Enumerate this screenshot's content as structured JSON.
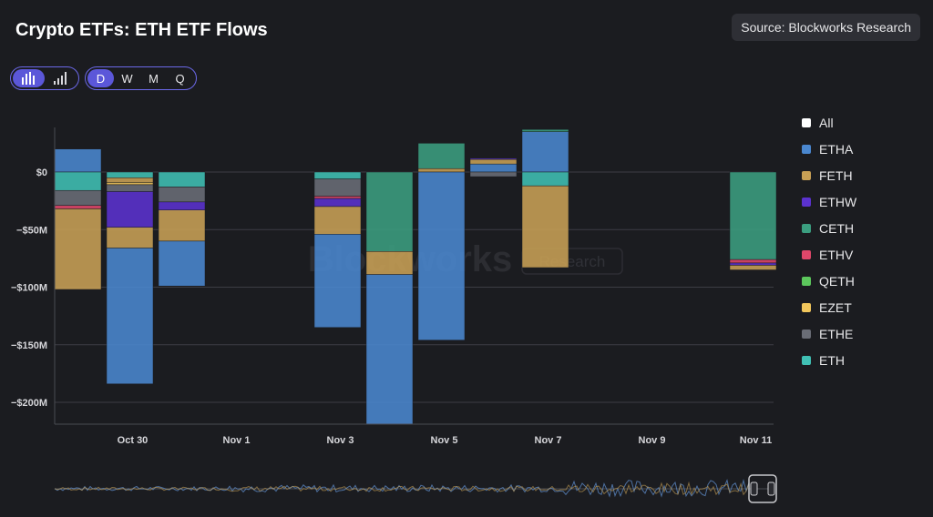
{
  "header": {
    "title": "Crypto ETFs: ETH ETF Flows",
    "source": "Source: Blockworks Research"
  },
  "controls": {
    "chart_type": [
      {
        "name": "bar-chart-icon",
        "active": true
      },
      {
        "name": "signal-bars-icon",
        "active": false
      }
    ],
    "periods": [
      {
        "label": "D",
        "active": true
      },
      {
        "label": "W",
        "active": false
      },
      {
        "label": "M",
        "active": false
      },
      {
        "label": "Q",
        "active": false
      }
    ]
  },
  "watermark": {
    "main": "Blockworks",
    "badge": "Research"
  },
  "legend": [
    {
      "label": "All",
      "color": "#ffffff"
    },
    {
      "label": "ETHA",
      "color": "#4a87cf"
    },
    {
      "label": "FETH",
      "color": "#c8a055"
    },
    {
      "label": "ETHW",
      "color": "#5b32cf"
    },
    {
      "label": "CETH",
      "color": "#3b9e80"
    },
    {
      "label": "ETHV",
      "color": "#e0476a"
    },
    {
      "label": "QETH",
      "color": "#5cc75c"
    },
    {
      "label": "EZET",
      "color": "#f2c75c"
    },
    {
      "label": "ETHE",
      "color": "#6a6d76"
    },
    {
      "label": "ETH",
      "color": "#40c0b4"
    }
  ],
  "chart_data": {
    "type": "bar",
    "stacked": true,
    "title": "Crypto ETFs: ETH ETF Flows",
    "ylim": [
      -220,
      40
    ],
    "yticks": [
      0,
      -50,
      -100,
      -150,
      -200
    ],
    "ytick_labels": [
      "$0",
      "−$50M",
      "−$100M",
      "−$150M",
      "−$200M"
    ],
    "xlim": [
      0,
      14
    ],
    "xticks": [
      {
        "pos": 1.5,
        "label": "Oct 30"
      },
      {
        "pos": 3.5,
        "label": "Nov 1"
      },
      {
        "pos": 5.5,
        "label": "Nov 3"
      },
      {
        "pos": 7.5,
        "label": "Nov 5"
      },
      {
        "pos": 9.5,
        "label": "Nov 7"
      },
      {
        "pos": 11.5,
        "label": "Nov 9"
      },
      {
        "pos": 13.5,
        "label": "Nov 11"
      }
    ],
    "grid": true,
    "legend_position": "right",
    "days": [
      {
        "pos": 0,
        "flows": [
          {
            "series": "ETHA",
            "value": 20
          },
          {
            "series": "ETH",
            "value": -16
          },
          {
            "series": "ETHE",
            "value": -13
          },
          {
            "series": "ETHV",
            "value": -3
          },
          {
            "series": "FETH",
            "value": -70
          }
        ]
      },
      {
        "pos": 1,
        "flows": [
          {
            "series": "ETH",
            "value": -5
          },
          {
            "series": "FETH",
            "value": -4
          },
          {
            "series": "EZET",
            "value": -2
          },
          {
            "series": "ETHE",
            "value": -6
          },
          {
            "series": "ETHW",
            "value": -31
          },
          {
            "series": "FETH",
            "value": -18
          },
          {
            "series": "ETHA",
            "value": -118
          }
        ]
      },
      {
        "pos": 2,
        "flows": [
          {
            "series": "ETH",
            "value": -13
          },
          {
            "series": "ETHE",
            "value": -13
          },
          {
            "series": "ETHW",
            "value": -7
          },
          {
            "series": "FETH",
            "value": -27
          },
          {
            "series": "ETHA",
            "value": -39
          }
        ]
      },
      {
        "pos": 5,
        "flows": [
          {
            "series": "ETH",
            "value": -6
          },
          {
            "series": "ETHE",
            "value": -15
          },
          {
            "series": "ETHV",
            "value": -2
          },
          {
            "series": "ETHW",
            "value": -7
          },
          {
            "series": "FETH",
            "value": -24
          },
          {
            "series": "ETHA",
            "value": -81
          }
        ]
      },
      {
        "pos": 6,
        "flows": [
          {
            "series": "CETH",
            "value": -69
          },
          {
            "series": "FETH",
            "value": -20
          },
          {
            "series": "ETHA",
            "value": -131
          }
        ]
      },
      {
        "pos": 7,
        "flows": [
          {
            "series": "FETH",
            "value": 3
          },
          {
            "series": "CETH",
            "value": 22
          },
          {
            "series": "ETHA",
            "value": -146
          }
        ]
      },
      {
        "pos": 8,
        "flows": [
          {
            "series": "ETHA",
            "value": 7
          },
          {
            "series": "FETH",
            "value": 4
          },
          {
            "series": "ETHW",
            "value": 1
          },
          {
            "series": "ETHE",
            "value": -4
          }
        ]
      },
      {
        "pos": 9,
        "flows": [
          {
            "series": "ETHA",
            "value": 35
          },
          {
            "series": "CETH",
            "value": 2
          },
          {
            "series": "ETH",
            "value": -12
          },
          {
            "series": "FETH",
            "value": -71
          }
        ]
      },
      {
        "pos": 13,
        "flows": [
          {
            "series": "CETH",
            "value": -76
          },
          {
            "series": "ETHV",
            "value": -3
          },
          {
            "series": "ETHW",
            "value": -2
          },
          {
            "series": "FETH",
            "value": -4
          }
        ]
      }
    ]
  }
}
